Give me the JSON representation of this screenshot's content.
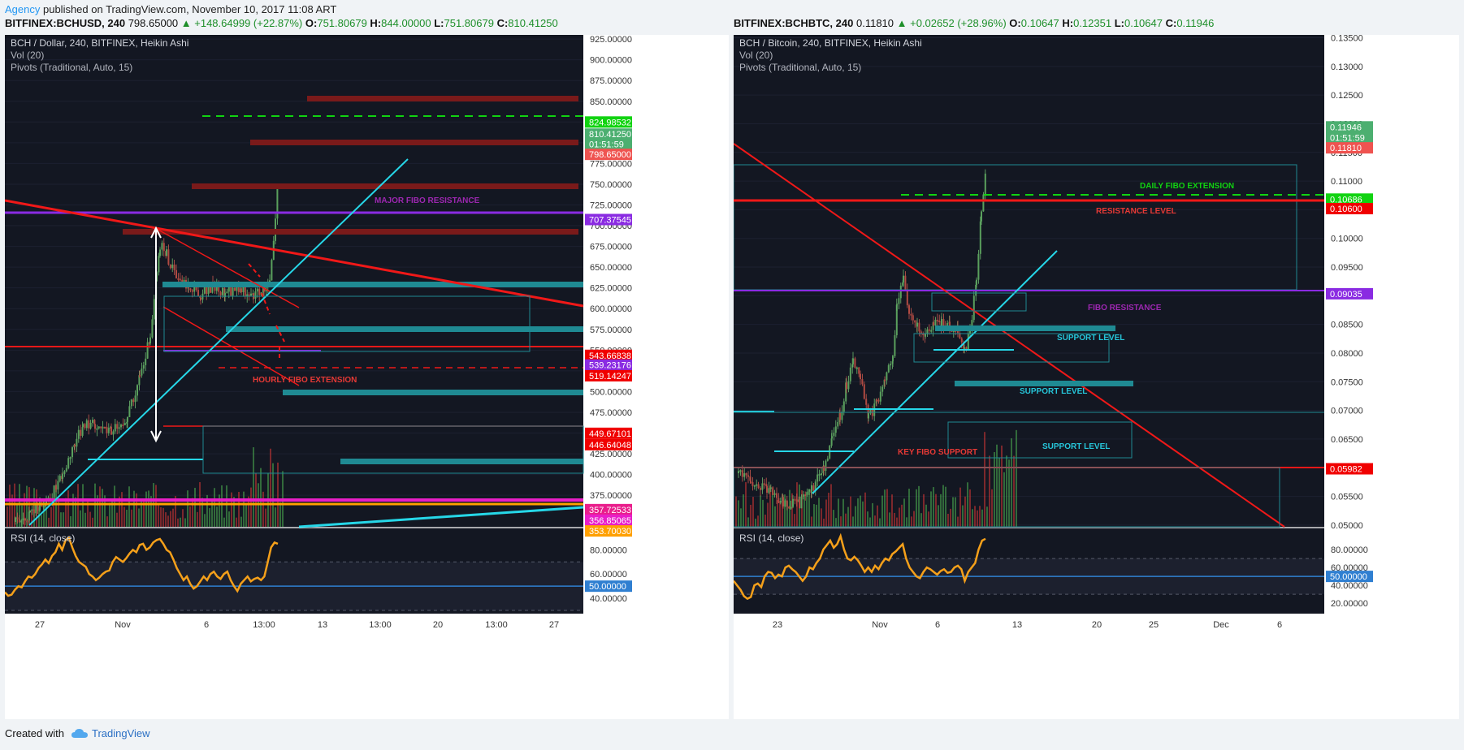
{
  "header": {
    "publisher": "Agency",
    "published_text": " published on TradingView.com, November 10, 2017 11:08 ART"
  },
  "left": {
    "symbol_line": {
      "symbol": "BITFINEX:BCHUSD, 240",
      "price": "798.65000",
      "change": "▲ +148.64999 (+22.87%)",
      "o_label": "O:",
      "o": "751.80679",
      "h_label": "H:",
      "h": "844.00000",
      "l_label": "L:",
      "l": "751.80679",
      "c_label": "C:",
      "c": "810.41250"
    },
    "legend": [
      "BCH / Dollar, 240, BITFINEX, Heikin Ashi",
      "Vol (20)",
      "Pivots (Traditional, Auto, 15)"
    ],
    "rsi_label": "RSI (14, close)"
  },
  "right": {
    "symbol_line": {
      "symbol": "BITFINEX:BCHBTC, 240",
      "price": "0.11810",
      "change": "▲ +0.02652 (+28.96%)",
      "o_label": "O:",
      "o": "0.10647",
      "h_label": "H:",
      "h": "0.12351",
      "l_label": "L:",
      "l": "0.10647",
      "c_label": "C:",
      "c": "0.11946"
    },
    "legend": [
      "BCH / Bitcoin, 240, BITFINEX, Heikin Ashi",
      "Vol (20)",
      "Pivots (Traditional, Auto, 15)"
    ],
    "rsi_label": "RSI (14, close)"
  },
  "footer": {
    "created_with": "Created with",
    "brand": "TradingView"
  },
  "chart_data": [
    {
      "type": "candlestick",
      "title": "BCH / Dollar, 240, BITFINEX, Heikin Ashi",
      "ylim": [
        337,
        930
      ],
      "y_ticks": [
        "925.00000",
        "900.00000",
        "875.00000",
        "850.00000",
        "825.00000",
        "800.00000",
        "775.00000",
        "750.00000",
        "725.00000",
        "700.00000",
        "675.00000",
        "650.00000",
        "625.00000",
        "600.00000",
        "575.00000",
        "550.00000",
        "525.00000",
        "500.00000",
        "475.00000",
        "450.00000",
        "425.00000",
        "400.00000",
        "375.00000"
      ],
      "x_ticks": [
        "27",
        "Nov",
        "6",
        "13:00",
        "13",
        "13:00",
        "20",
        "13:00",
        "27"
      ],
      "price_badges": [
        {
          "label": "824.98532",
          "value": 825,
          "color": "#11d311"
        },
        {
          "label": "810.41250",
          "value": 810.4,
          "color": "#4caf70"
        },
        {
          "label": "01:51:59",
          "value": 798.6,
          "color": "#4caf70"
        },
        {
          "label": "798.65000",
          "value": 786,
          "color": "#ef5350"
        },
        {
          "label": "707.37545",
          "value": 707.4,
          "color": "#8a2be2"
        },
        {
          "label": "543.66838",
          "value": 543.7,
          "color": "#f00000"
        },
        {
          "label": "539.23176",
          "value": 532,
          "color": "#8a2be2"
        },
        {
          "label": "519.14247",
          "value": 519.1,
          "color": "#f00000"
        },
        {
          "label": "449.67101",
          "value": 449.7,
          "color": "#f00000"
        },
        {
          "label": "446.64048",
          "value": 436,
          "color": "#f00000"
        },
        {
          "label": "357.72533",
          "value": 357.7,
          "color": "#e91e8c"
        },
        {
          "label": "356.85065",
          "value": 345,
          "color": "#e91ec8"
        },
        {
          "label": "353.70030",
          "value": 332,
          "color": "#ffa000"
        }
      ],
      "annotations": [
        {
          "text": "MAJOR FIBO RESISTANCE",
          "color": "#9c27b0"
        },
        {
          "text": "HOURLY FIBO EXTENSION",
          "color": "#e53935"
        }
      ],
      "rsi": {
        "label": "RSI (14, close)",
        "ylim": [
          30,
          95
        ],
        "ticks": [
          "80.00000",
          "60.00000",
          "40.00000"
        ],
        "badge": "50.00000",
        "values": [
          45,
          42,
          43,
          47,
          50,
          49,
          54,
          58,
          57,
          60,
          65,
          68,
          72,
          69,
          75,
          78,
          85,
          80,
          88,
          90,
          82,
          75,
          70,
          68,
          66,
          60,
          58,
          55,
          57,
          60,
          62,
          63,
          70,
          74,
          72,
          70,
          73,
          77,
          80,
          78,
          84,
          85,
          80,
          82,
          86,
          88,
          89,
          85,
          80,
          78,
          72,
          65,
          60,
          55,
          58,
          52,
          48,
          50,
          54,
          58,
          55,
          60,
          62,
          58,
          56,
          60,
          62,
          55,
          50,
          46,
          52,
          55,
          58,
          54,
          56,
          57,
          55,
          58,
          70,
          82,
          86,
          85
        ]
      }
    },
    {
      "type": "candlestick",
      "title": "BCH / Bitcoin, 240, BITFINEX, Heikin Ashi",
      "ylim": [
        0.0497,
        0.1355
      ],
      "y_ticks": [
        "0.13500",
        "0.13000",
        "0.12500",
        "0.12000",
        "0.11500",
        "0.11000",
        "0.10500",
        "0.10000",
        "0.09500",
        "0.09000",
        "0.08500",
        "0.08000",
        "0.07500",
        "0.07000",
        "0.06500",
        "0.06000",
        "0.05500",
        "0.05000"
      ],
      "x_ticks": [
        "23",
        "Nov",
        "6",
        "13",
        "20",
        "25",
        "Dec",
        "6"
      ],
      "price_badges": [
        {
          "label": "0.11946",
          "value": 0.11946,
          "color": "#4caf70"
        },
        {
          "label": "01:51:59",
          "value": 0.1176,
          "color": "#4caf70"
        },
        {
          "label": "0.11810",
          "value": 0.1158,
          "color": "#ef5350"
        },
        {
          "label": "0.10686",
          "value": 0.10686,
          "color": "#11d311"
        },
        {
          "label": "0.10600",
          "value": 0.1052,
          "color": "#f00000"
        },
        {
          "label": "0.09035",
          "value": 0.09035,
          "color": "#8a2be2"
        },
        {
          "label": "0.05982",
          "value": 0.05982,
          "color": "#f00000"
        }
      ],
      "annotations": [
        {
          "text": "DAILY FIBO EXTENSION",
          "color": "#11d311"
        },
        {
          "text": "RESISTANCE LEVEL",
          "color": "#e53935"
        },
        {
          "text": "FIBO RESISTANCE",
          "color": "#9c27b0"
        },
        {
          "text": "SUPPORT LEVEL",
          "color": "#26c6da"
        },
        {
          "text": "SUPPORT LEVEL",
          "color": "#26c6da"
        },
        {
          "text": "SUPPORT LEVEL",
          "color": "#26c6da"
        },
        {
          "text": "KEY FIBO SUPPORT",
          "color": "#e53935"
        }
      ],
      "rsi": {
        "label": "RSI (14, close)",
        "ylim": [
          12,
          100
        ],
        "ticks": [
          "80.00000",
          "60.00000",
          "40.00000",
          "20.00000"
        ],
        "badge": "50.00000",
        "values": [
          45,
          40,
          35,
          28,
          25,
          27,
          40,
          42,
          38,
          50,
          55,
          54,
          48,
          52,
          50,
          60,
          62,
          58,
          55,
          50,
          45,
          50,
          60,
          58,
          65,
          70,
          80,
          85,
          90,
          82,
          86,
          95,
          80,
          70,
          68,
          72,
          68,
          62,
          55,
          60,
          55,
          62,
          58,
          65,
          70,
          68,
          75,
          78,
          82,
          86,
          70,
          60,
          55,
          50,
          48,
          55,
          60,
          58,
          55,
          52,
          56,
          58,
          54,
          55,
          60,
          62,
          58,
          45,
          55,
          60,
          65,
          80,
          90,
          92
        ]
      }
    }
  ]
}
